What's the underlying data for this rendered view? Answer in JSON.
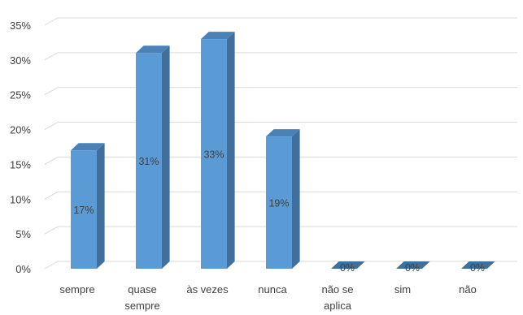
{
  "chart_data": {
    "type": "bar",
    "style": "3d-column",
    "categories": [
      "sempre",
      "quase sempre",
      "às vezes",
      "nunca",
      "não se aplica",
      "sim",
      "não"
    ],
    "category_lines": [
      [
        "sempre"
      ],
      [
        "quase",
        "sempre"
      ],
      [
        "às vezes"
      ],
      [
        "nunca"
      ],
      [
        "não se",
        "aplica"
      ],
      [
        "sim"
      ],
      [
        "não"
      ]
    ],
    "values": [
      17,
      31,
      33,
      19,
      0,
      0,
      0
    ],
    "value_labels": [
      "17%",
      "31%",
      "33%",
      "19%",
      "0%",
      "0%",
      "0%"
    ],
    "ylim": [
      0,
      35
    ],
    "yticks": [
      0,
      5,
      10,
      15,
      20,
      25,
      30,
      35
    ],
    "ytick_labels": [
      "0%",
      "5%",
      "10%",
      "15%",
      "20%",
      "25%",
      "30%",
      "35%"
    ],
    "grid": true,
    "legend": "none",
    "colors": {
      "bar_front": "#5b9bd5",
      "bar_side": "#3f6f9c",
      "bar_top": "#4a82b8",
      "grid": "#d9d9d9",
      "text": "#404040"
    }
  }
}
